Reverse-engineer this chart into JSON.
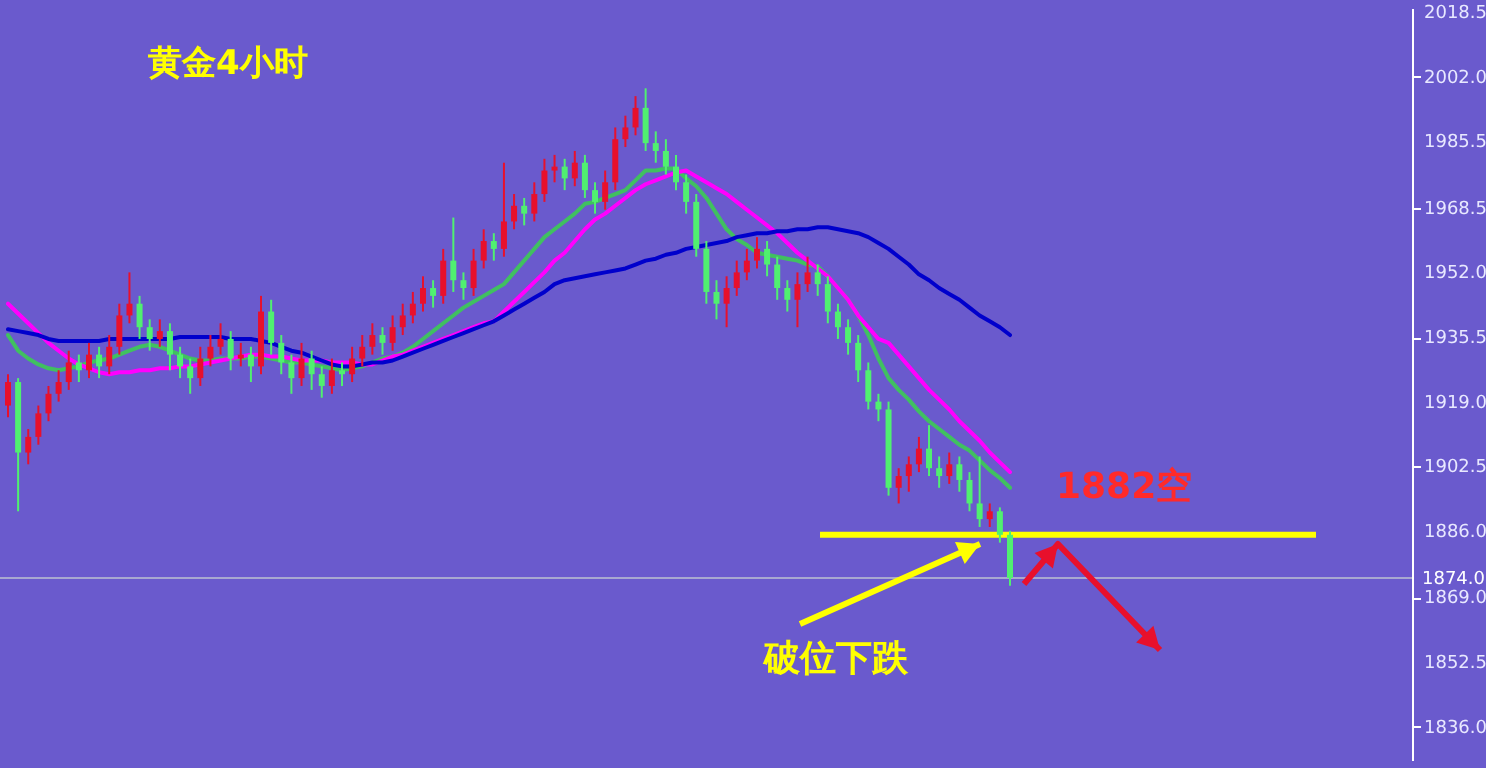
{
  "chart_data": {
    "type": "candlestick",
    "title": "黄金4小时",
    "categories": [
      null,
      null,
      null,
      null,
      null,
      null,
      null,
      null,
      null,
      null,
      null,
      null,
      null,
      null,
      null,
      null,
      null,
      null,
      null,
      null,
      null,
      null,
      null,
      null,
      null,
      null,
      null,
      null,
      null,
      null,
      null,
      null,
      null,
      null,
      null,
      null,
      null,
      null,
      null,
      null,
      null,
      null,
      null,
      null,
      null,
      null,
      null,
      null,
      null,
      null,
      null,
      null,
      null,
      null,
      null,
      null,
      null,
      null,
      null,
      null,
      null,
      null,
      null,
      null,
      null,
      null,
      null,
      null,
      null,
      null,
      null,
      null,
      null,
      null,
      null,
      null,
      null,
      null,
      null,
      null,
      null,
      null,
      null,
      null,
      null,
      null,
      null,
      null,
      null,
      null,
      null,
      null,
      null,
      null,
      null,
      null,
      null,
      null,
      null,
      null
    ],
    "ohlc": [
      [
        1918,
        1926,
        1915,
        1924
      ],
      [
        1924,
        1925,
        1891,
        1906
      ],
      [
        1906,
        1912,
        1903,
        1910
      ],
      [
        1910,
        1918,
        1908,
        1916
      ],
      [
        1916,
        1923,
        1914,
        1921
      ],
      [
        1921,
        1927,
        1919,
        1924
      ],
      [
        1924,
        1932,
        1922,
        1929
      ],
      [
        1929,
        1931,
        1924,
        1927
      ],
      [
        1927,
        1934,
        1925,
        1931
      ],
      [
        1931,
        1933,
        1925,
        1928
      ],
      [
        1928,
        1936,
        1926,
        1933
      ],
      [
        1933,
        1944,
        1931,
        1941
      ],
      [
        1941,
        1952,
        1939,
        1944
      ],
      [
        1944,
        1946,
        1935,
        1938
      ],
      [
        1938,
        1940,
        1932,
        1935
      ],
      [
        1935,
        1940,
        1933,
        1937
      ],
      [
        1937,
        1939,
        1927,
        1931
      ],
      [
        1931,
        1933,
        1925,
        1928
      ],
      [
        1928,
        1930,
        1921,
        1925
      ],
      [
        1925,
        1933,
        1923,
        1930
      ],
      [
        1930,
        1936,
        1928,
        1933
      ],
      [
        1933,
        1939,
        1931,
        1935
      ],
      [
        1935,
        1937,
        1927,
        1930
      ],
      [
        1930,
        1934,
        1928,
        1931
      ],
      [
        1931,
        1933,
        1924,
        1928
      ],
      [
        1928,
        1946,
        1926,
        1942
      ],
      [
        1942,
        1945,
        1931,
        1934
      ],
      [
        1934,
        1936,
        1926,
        1929
      ],
      [
        1929,
        1931,
        1921,
        1925
      ],
      [
        1925,
        1934,
        1923,
        1930
      ],
      [
        1930,
        1932,
        1922,
        1926
      ],
      [
        1926,
        1928,
        1920,
        1923
      ],
      [
        1923,
        1930,
        1921,
        1927
      ],
      [
        1927,
        1929,
        1923,
        1926
      ],
      [
        1926,
        1933,
        1924,
        1930
      ],
      [
        1930,
        1936,
        1928,
        1933
      ],
      [
        1933,
        1939,
        1931,
        1936
      ],
      [
        1936,
        1938,
        1931,
        1934
      ],
      [
        1934,
        1941,
        1932,
        1938
      ],
      [
        1938,
        1944,
        1936,
        1941
      ],
      [
        1941,
        1947,
        1939,
        1944
      ],
      [
        1944,
        1951,
        1942,
        1948
      ],
      [
        1948,
        1950,
        1943,
        1946
      ],
      [
        1946,
        1958,
        1944,
        1955
      ],
      [
        1955,
        1966,
        1947,
        1950
      ],
      [
        1950,
        1952,
        1945,
        1948
      ],
      [
        1948,
        1958,
        1946,
        1955
      ],
      [
        1955,
        1963,
        1953,
        1960
      ],
      [
        1960,
        1962,
        1955,
        1958
      ],
      [
        1958,
        1980,
        1956,
        1965
      ],
      [
        1965,
        1972,
        1963,
        1969
      ],
      [
        1969,
        1971,
        1964,
        1967
      ],
      [
        1967,
        1975,
        1965,
        1972
      ],
      [
        1972,
        1981,
        1970,
        1978
      ],
      [
        1978,
        1982,
        1975,
        1979
      ],
      [
        1979,
        1981,
        1973,
        1976
      ],
      [
        1976,
        1983,
        1974,
        1980
      ],
      [
        1980,
        1982,
        1971,
        1973
      ],
      [
        1973,
        1975,
        1967,
        1970
      ],
      [
        1970,
        1978,
        1968,
        1975
      ],
      [
        1975,
        1989,
        1973,
        1986
      ],
      [
        1986,
        1992,
        1984,
        1989
      ],
      [
        1989,
        1997,
        1987,
        1994
      ],
      [
        1994,
        1999,
        1983,
        1985
      ],
      [
        1985,
        1988,
        1980,
        1983
      ],
      [
        1983,
        1986,
        1977,
        1979
      ],
      [
        1979,
        1982,
        1973,
        1975
      ],
      [
        1975,
        1977,
        1967,
        1970
      ],
      [
        1970,
        1972,
        1956,
        1958
      ],
      [
        1958,
        1960,
        1944,
        1947
      ],
      [
        1947,
        1950,
        1940,
        1944
      ],
      [
        1944,
        1951,
        1938,
        1948
      ],
      [
        1948,
        1955,
        1946,
        1952
      ],
      [
        1952,
        1958,
        1950,
        1955
      ],
      [
        1955,
        1961,
        1953,
        1958
      ],
      [
        1958,
        1960,
        1951,
        1954
      ],
      [
        1954,
        1956,
        1945,
        1948
      ],
      [
        1948,
        1950,
        1942,
        1945
      ],
      [
        1945,
        1952,
        1938,
        1949
      ],
      [
        1949,
        1956,
        1947,
        1952
      ],
      [
        1952,
        1954,
        1946,
        1949
      ],
      [
        1949,
        1951,
        1939,
        1942
      ],
      [
        1942,
        1944,
        1935,
        1938
      ],
      [
        1938,
        1940,
        1931,
        1934
      ],
      [
        1934,
        1936,
        1924,
        1927
      ],
      [
        1927,
        1929,
        1917,
        1919
      ],
      [
        1919,
        1921,
        1914,
        1917
      ],
      [
        1917,
        1919,
        1895,
        1897
      ],
      [
        1897,
        1902,
        1893,
        1900
      ],
      [
        1900,
        1905,
        1896,
        1903
      ],
      [
        1903,
        1910,
        1901,
        1907
      ],
      [
        1907,
        1913,
        1900,
        1902
      ],
      [
        1902,
        1905,
        1897,
        1900
      ],
      [
        1900,
        1906,
        1898,
        1903
      ],
      [
        1903,
        1905,
        1896,
        1899
      ],
      [
        1899,
        1901,
        1891,
        1893
      ],
      [
        1893,
        1905,
        1887,
        1889
      ],
      [
        1889,
        1893,
        1887,
        1891
      ],
      [
        1891,
        1892,
        1883,
        1885
      ],
      [
        1885,
        1886,
        1872,
        1874
      ]
    ],
    "colors": [
      "#e8102c",
      "#50f070",
      "#e8102c",
      "#e8102c",
      "#e8102c",
      "#e8102c",
      "#e8102c",
      "#50f070",
      "#e8102c",
      "#50f070",
      "#e8102c",
      "#e8102c",
      "#e8102c",
      "#50f070",
      "#50f070",
      "#e8102c",
      "#50f070",
      "#50f070",
      "#50f070",
      "#e8102c",
      "#e8102c",
      "#e8102c",
      "#50f070",
      "#e8102c",
      "#50f070",
      "#e8102c",
      "#50f070",
      "#50f070",
      "#50f070",
      "#e8102c",
      "#50f070",
      "#50f070",
      "#e8102c",
      "#50f070",
      "#e8102c",
      "#e8102c",
      "#e8102c",
      "#50f070",
      "#e8102c",
      "#e8102c",
      "#e8102c",
      "#e8102c",
      "#50f070",
      "#e8102c",
      "#50f070",
      "#50f070",
      "#e8102c",
      "#e8102c",
      "#50f070",
      "#e8102c",
      "#e8102c",
      "#50f070",
      "#e8102c",
      "#e8102c",
      "#e8102c",
      "#50f070",
      "#e8102c",
      "#50f070",
      "#50f070",
      "#e8102c",
      "#e8102c",
      "#e8102c",
      "#e8102c",
      "#50f070",
      "#50f070",
      "#50f070",
      "#50f070",
      "#50f070",
      "#50f070",
      "#50f070",
      "#50f070",
      "#e8102c",
      "#e8102c",
      "#e8102c",
      "#e8102c",
      "#50f070",
      "#50f070",
      "#50f070",
      "#e8102c",
      "#e8102c",
      "#50f070",
      "#50f070",
      "#50f070",
      "#50f070",
      "#50f070",
      "#50f070",
      "#50f070",
      "#50f070",
      "#e8102c",
      "#e8102c",
      "#e8102c",
      "#50f070",
      "#50f070",
      "#e8102c",
      "#50f070",
      "#50f070",
      "#50f070",
      "#e8102c",
      "#50f070",
      "#50f070"
    ],
    "series": [
      {
        "type": "line",
        "color": "#40c060",
        "values": [
          1936,
          1932,
          1930,
          1928.5,
          1927.5,
          1927,
          1927.5,
          1928,
          1929,
          1929.5,
          1930,
          1931,
          1932,
          1933,
          1933.5,
          1933,
          1932,
          1931,
          1930,
          1929.5,
          1929.5,
          1930,
          1930,
          1930,
          1930.5,
          1930.5,
          1930,
          1929.5,
          1929,
          1929,
          1928.5,
          1928,
          1927.5,
          1927,
          1927.5,
          1928,
          1929,
          1930,
          1930.5,
          1931.5,
          1933,
          1935,
          1937,
          1939,
          1941,
          1943,
          1944.5,
          1946,
          1947.5,
          1949,
          1952,
          1955,
          1958,
          1961,
          1963,
          1965,
          1967,
          1969.5,
          1970,
          1971,
          1972,
          1973,
          1975.5,
          1978,
          1978,
          1978.5,
          1978.5,
          1976,
          1974,
          1971,
          1967,
          1963,
          1960.5,
          1959,
          1957,
          1956.5,
          1956,
          1955.5,
          1955,
          1954,
          1953.5,
          1951,
          1948,
          1945,
          1941,
          1936,
          1930,
          1925,
          1922,
          1919.5,
          1916.5,
          1914,
          1912,
          1910,
          1908,
          1906.5,
          1904,
          1901.5,
          1899.5,
          1897
        ]
      },
      {
        "type": "line",
        "color": "#ff00ff",
        "values": [
          1944,
          1941.5,
          1939,
          1936.5,
          1934,
          1932,
          1930,
          1928.5,
          1927.5,
          1926.5,
          1926,
          1926.5,
          1926.5,
          1927,
          1927,
          1927.5,
          1927.5,
          1928,
          1928,
          1928.5,
          1929,
          1929.5,
          1930,
          1930.5,
          1931,
          1931,
          1930.5,
          1930.5,
          1930,
          1929.5,
          1929.5,
          1929.5,
          1929,
          1929,
          1929,
          1928.5,
          1928.5,
          1929.5,
          1930.5,
          1931,
          1932,
          1933,
          1934,
          1935,
          1936,
          1937,
          1938,
          1939,
          1939.5,
          1942,
          1944.5,
          1947,
          1949.5,
          1952,
          1955,
          1957,
          1960,
          1963,
          1965.5,
          1967,
          1969,
          1971,
          1973,
          1974.5,
          1975.5,
          1976.5,
          1977.5,
          1978,
          1976.5,
          1975,
          1973.5,
          1972,
          1970,
          1968,
          1966,
          1964,
          1962,
          1959.5,
          1957,
          1955,
          1953,
          1951,
          1948,
          1945,
          1941,
          1938,
          1935,
          1934,
          1931,
          1928,
          1925,
          1922,
          1919.5,
          1917,
          1914,
          1911.5,
          1909,
          1906,
          1903.5,
          1901
        ]
      },
      {
        "type": "line",
        "color": "#0000cc",
        "values": [
          1937.5,
          1937,
          1936.5,
          1936,
          1935,
          1934.5,
          1934.5,
          1934.5,
          1934.5,
          1934.5,
          1935,
          1935,
          1935,
          1935,
          1935,
          1935,
          1935,
          1935.5,
          1935.5,
          1935.5,
          1935.5,
          1935.5,
          1935,
          1935,
          1935,
          1934.5,
          1934,
          1933,
          1932,
          1931.5,
          1930.5,
          1929.5,
          1928.5,
          1928,
          1928,
          1928.5,
          1929,
          1929,
          1929.5,
          1930.5,
          1931.5,
          1932.5,
          1933.5,
          1934.5,
          1935.5,
          1936.5,
          1937.5,
          1938.5,
          1939.5,
          1941,
          1942.5,
          1944,
          1945.5,
          1947,
          1949,
          1950,
          1950.5,
          1951,
          1951.5,
          1952,
          1952.5,
          1953,
          1954,
          1955,
          1955.5,
          1956.5,
          1957,
          1958,
          1958.5,
          1959,
          1959.5,
          1960,
          1961,
          1961.5,
          1962,
          1962,
          1962.5,
          1962.5,
          1963,
          1963,
          1963.5,
          1963.5,
          1963,
          1962.5,
          1962,
          1961,
          1959.5,
          1958,
          1956,
          1954,
          1951.5,
          1950,
          1948,
          1946.5,
          1945,
          1943,
          1941,
          1939.5,
          1938,
          1936
        ]
      }
    ],
    "ref_lines": [
      {
        "axis": "y",
        "value": 1874,
        "label": "1874.0",
        "color": "#a8a8d0"
      },
      {
        "axis": "y",
        "value": 1885,
        "color": "#ffff00"
      }
    ],
    "annotations": [
      "1882空",
      "破位下跌"
    ],
    "ylim": [
      1827.5,
      2019.5
    ],
    "yticks": [
      {
        "value": 2018.5,
        "label": "2018.5"
      },
      {
        "value": 2002,
        "label": "2002.0"
      },
      {
        "value": 1985.5,
        "label": "1985.5"
      },
      {
        "value": 1968.5,
        "label": "1968.5"
      },
      {
        "value": 1952,
        "label": "1952.0"
      },
      {
        "value": 1935.5,
        "label": "1935.5"
      },
      {
        "value": 1919,
        "label": "1919.0"
      },
      {
        "value": 1902.5,
        "label": "1902.5"
      },
      {
        "value": 1886,
        "label": "1886.0"
      },
      {
        "value": 1869,
        "label": "1869.0"
      },
      {
        "value": 1852.5,
        "label": "1852.5"
      },
      {
        "value": 1836,
        "label": "1836.0"
      }
    ],
    "tick_labels": "y"
  }
}
